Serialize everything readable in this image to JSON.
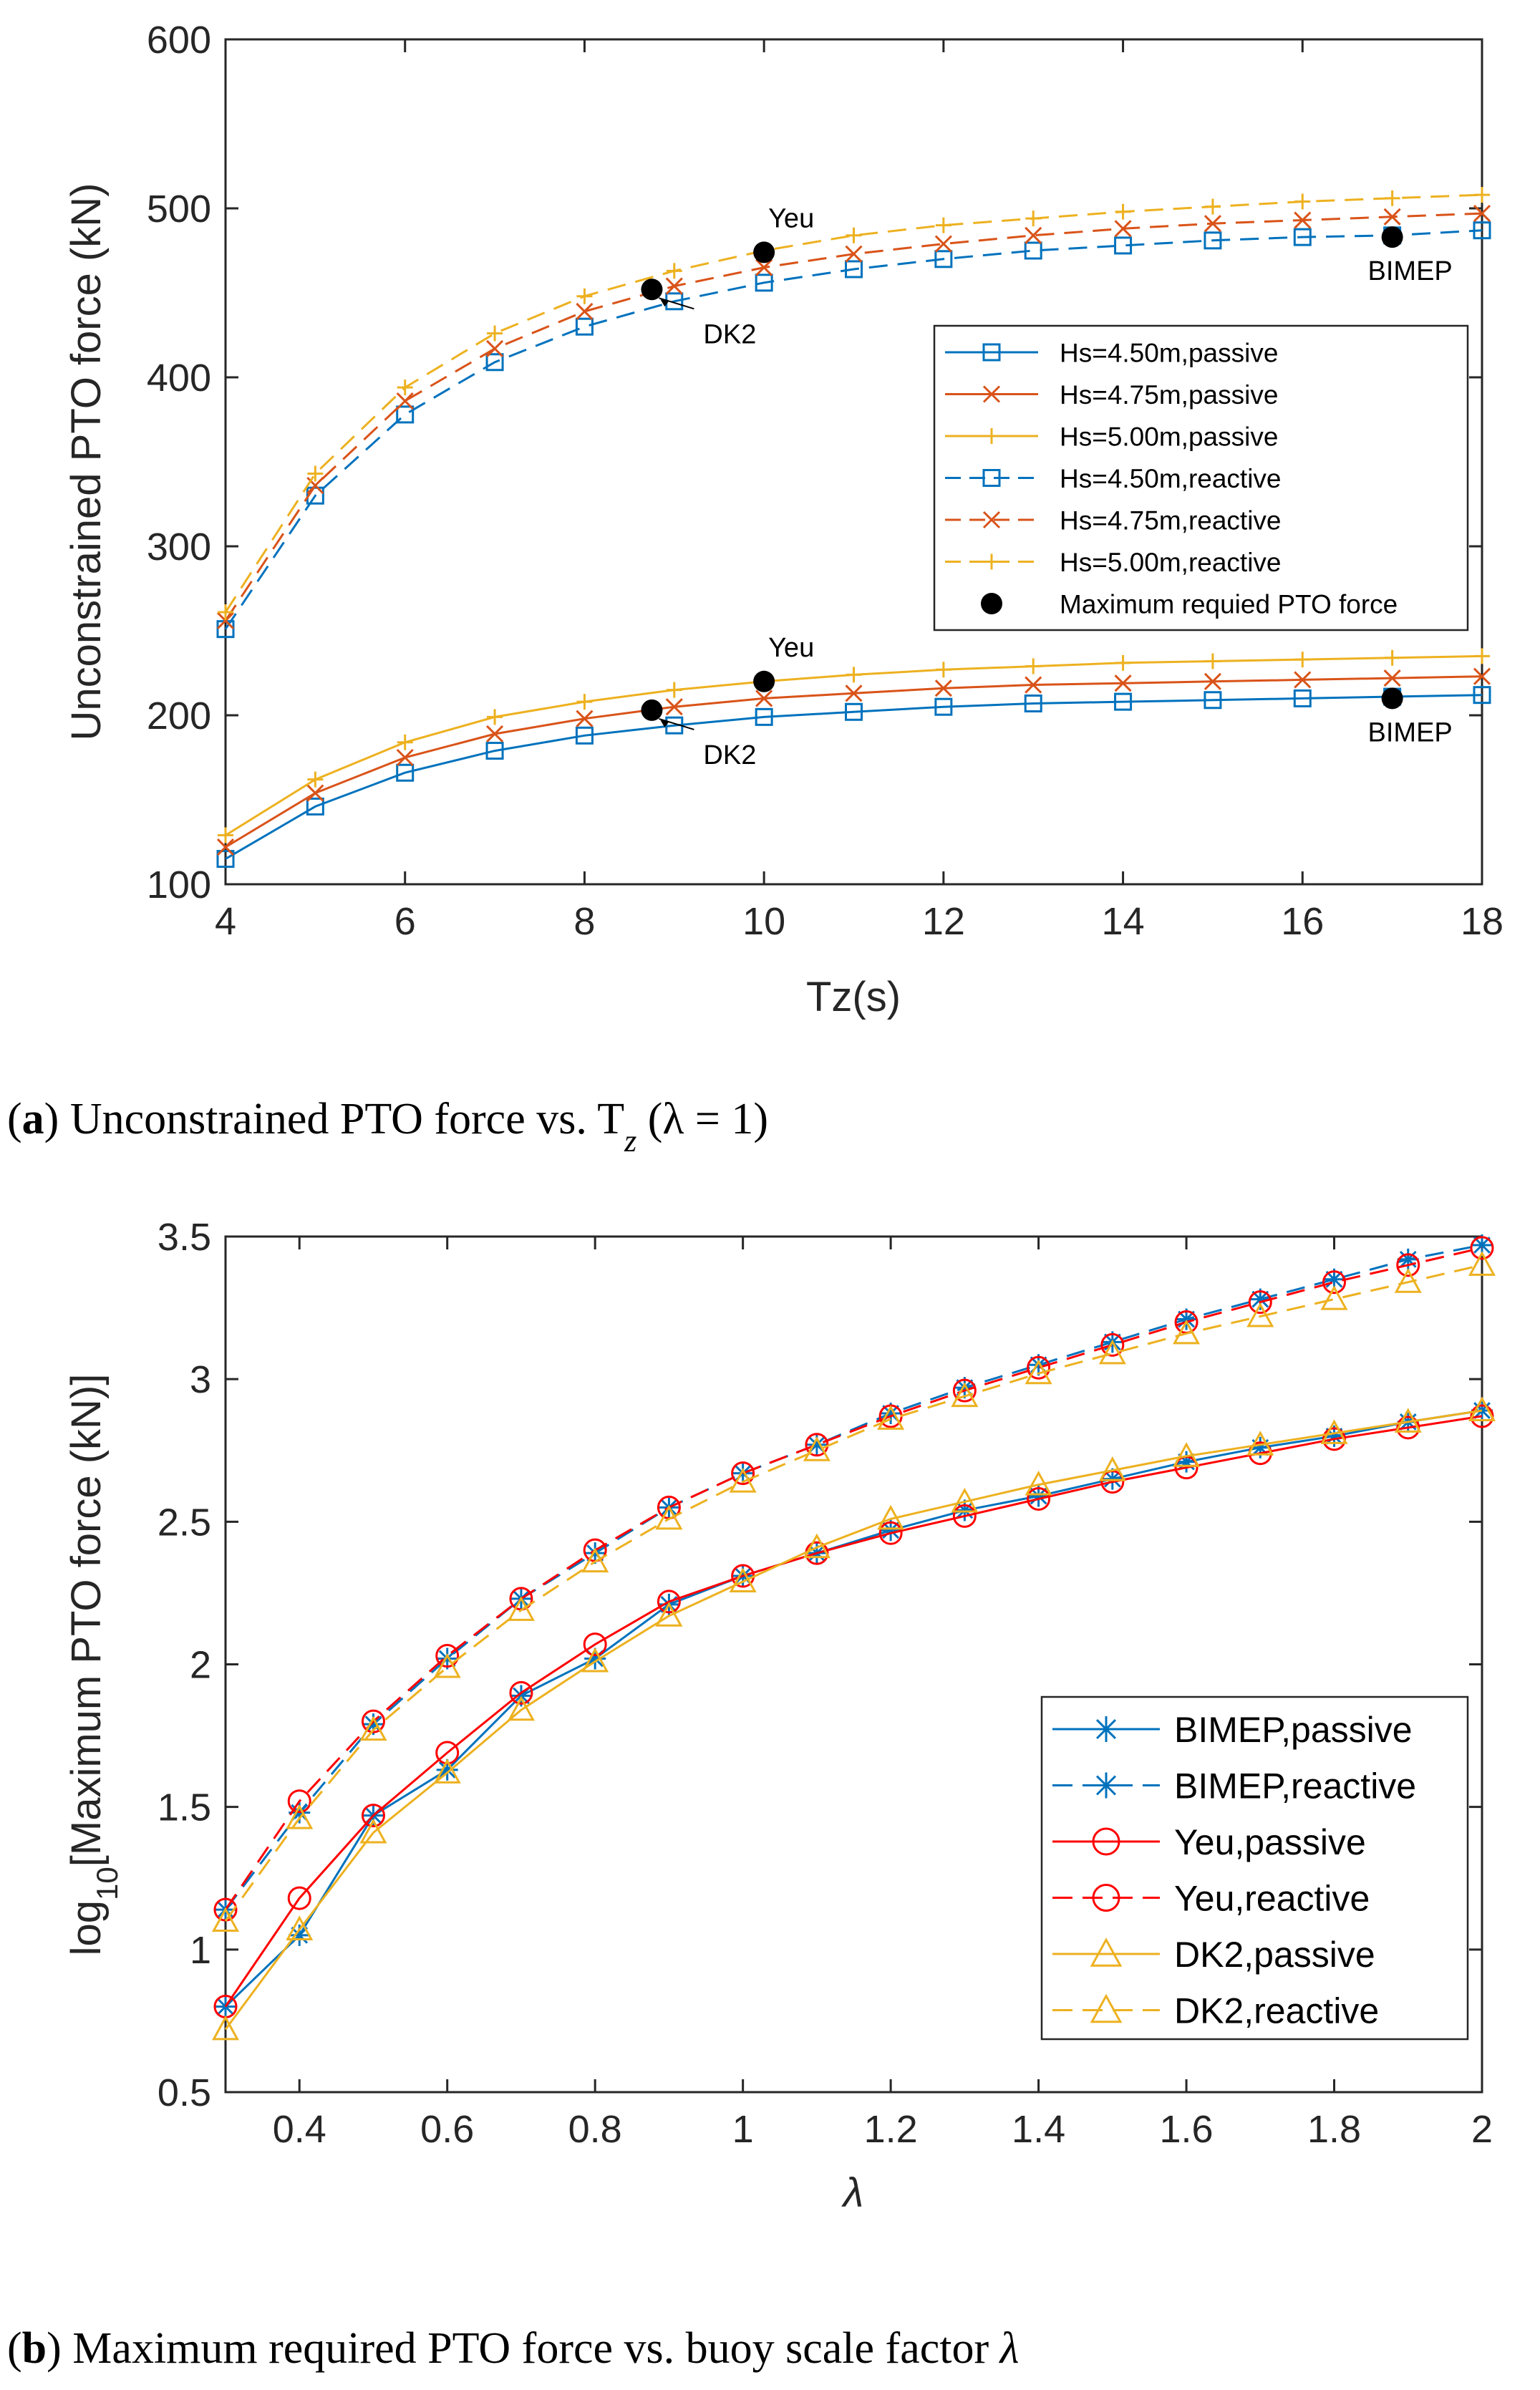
{
  "chart_data": [
    {
      "type": "line",
      "xlabel": "Tz(s)",
      "ylabel": "Unconstrained PTO force (kN)",
      "xlim": [
        4,
        18
      ],
      "ylim": [
        100,
        600
      ],
      "xticks": [
        4,
        6,
        8,
        10,
        12,
        14,
        16,
        18
      ],
      "yticks": [
        100,
        200,
        300,
        400,
        500,
        600
      ],
      "xtick_labels": [
        "4",
        "6",
        "8",
        "10",
        "12",
        "14",
        "16",
        "18"
      ],
      "ytick_labels": [
        "100",
        "200",
        "300",
        "400",
        "500",
        "600"
      ],
      "grid": false,
      "legend_position": "right",
      "x": [
        4,
        5,
        6,
        7,
        8,
        9,
        10,
        11,
        12,
        13,
        14,
        15,
        16,
        17,
        18
      ],
      "series": [
        {
          "name": "Hs=4.50m,passive",
          "color": "#0072BD",
          "dash": false,
          "marker": "square",
          "values": [
            115,
            146,
            166,
            179,
            188,
            194,
            199,
            202,
            205,
            207,
            208,
            209,
            210,
            211,
            212
          ]
        },
        {
          "name": "Hs=4.75m,passive",
          "color": "#D95319",
          "dash": false,
          "marker": "x",
          "values": [
            122,
            154,
            175,
            189,
            198,
            205,
            210,
            213,
            216,
            218,
            219,
            220,
            221,
            222,
            223
          ]
        },
        {
          "name": "Hs=5.00m,passive",
          "color": "#EDB120",
          "dash": false,
          "marker": "plus",
          "values": [
            129,
            162,
            184,
            199,
            208,
            215,
            220,
            224,
            227,
            229,
            231,
            232,
            233,
            234,
            235
          ]
        },
        {
          "name": "Hs=4.50m,reactive",
          "color": "#0072BD",
          "dash": true,
          "marker": "square",
          "values": [
            251,
            330,
            378,
            409,
            430,
            445,
            456,
            464,
            470,
            475,
            478,
            481,
            483,
            484,
            487
          ]
        },
        {
          "name": "Hs=4.75m,reactive",
          "color": "#D95319",
          "dash": true,
          "marker": "x",
          "values": [
            256,
            336,
            386,
            417,
            439,
            454,
            465,
            473,
            479,
            484,
            488,
            491,
            493,
            495,
            497
          ]
        },
        {
          "name": "Hs=5.00m,reactive",
          "color": "#EDB120",
          "dash": true,
          "marker": "plus",
          "values": [
            261,
            343,
            394,
            426,
            448,
            463,
            475,
            484,
            490,
            494,
            498,
            501,
            504,
            506,
            508
          ]
        }
      ],
      "max_points_label": "Maximum requied PTO force",
      "max_points": [
        {
          "x": 8.75,
          "y": 452,
          "label": "DK2",
          "label_dx": 0.55,
          "label_dy": -30
        },
        {
          "x": 10,
          "y": 474,
          "label": "Yeu",
          "label_dx": 0.3,
          "label_dy": 30
        },
        {
          "x": 17,
          "y": 483,
          "label": "BIMEP",
          "label_dx": 0,
          "label_dy": -25
        },
        {
          "x": 8.75,
          "y": 203,
          "label": "DK2",
          "label_dx": 0.55,
          "label_dy": -30
        },
        {
          "x": 10,
          "y": 220,
          "label": "Yeu",
          "label_dx": 0.3,
          "label_dy": 30
        },
        {
          "x": 17,
          "y": 210,
          "label": "BIMEP",
          "label_dx": 0,
          "label_dy": -25
        }
      ],
      "caption_letter": "a",
      "caption_text": "Unconstrained PTO force vs. T",
      "caption_sub": "z",
      "caption_tail": " (λ = 1)"
    },
    {
      "type": "line",
      "xlabel": "λ",
      "ylabel_prefix": "log",
      "ylabel_sub": "10",
      "ylabel_rest": "[Maximum PTO force (kN)]",
      "xlim": [
        0.3,
        2
      ],
      "ylim": [
        0.5,
        3.5
      ],
      "xticks": [
        0.4,
        0.6,
        0.8,
        1.0,
        1.2,
        1.4,
        1.6,
        1.8,
        2.0
      ],
      "yticks": [
        0.5,
        1.0,
        1.5,
        2.0,
        2.5,
        3.0,
        3.5
      ],
      "xtick_labels": [
        "0.4",
        "0.6",
        "0.8",
        "1",
        "1.2",
        "1.4",
        "1.6",
        "1.8",
        "2"
      ],
      "ytick_labels": [
        "0.5",
        "1",
        "1.5",
        "2",
        "2.5",
        "3",
        "3.5"
      ],
      "grid": false,
      "legend_position": "bottom-right",
      "x": [
        0.3,
        0.4,
        0.5,
        0.6,
        0.7,
        0.8,
        0.9,
        1.0,
        1.1,
        1.2,
        1.3,
        1.4,
        1.5,
        1.6,
        1.7,
        1.8,
        1.9,
        2.0
      ],
      "series": [
        {
          "name": "BIMEP,passive",
          "color": "#0072BD",
          "dash": false,
          "marker": "asterisk",
          "values": [
            0.8,
            1.05,
            1.47,
            1.63,
            1.89,
            2.02,
            2.21,
            2.31,
            2.39,
            2.47,
            2.54,
            2.59,
            2.65,
            2.71,
            2.76,
            2.8,
            2.85,
            2.89
          ]
        },
        {
          "name": "BIMEP,reactive",
          "color": "#0072BD",
          "dash": true,
          "marker": "asterisk",
          "values": [
            1.14,
            1.48,
            1.79,
            2.02,
            2.23,
            2.39,
            2.55,
            2.67,
            2.77,
            2.88,
            2.97,
            3.05,
            3.13,
            3.21,
            3.28,
            3.35,
            3.42,
            3.47
          ]
        },
        {
          "name": "Yeu,passive",
          "color": "#FF0000",
          "dash": false,
          "marker": "circle",
          "values": [
            0.8,
            1.18,
            1.47,
            1.69,
            1.9,
            2.07,
            2.22,
            2.31,
            2.39,
            2.46,
            2.52,
            2.58,
            2.64,
            2.69,
            2.74,
            2.79,
            2.83,
            2.87
          ]
        },
        {
          "name": "Yeu,reactive",
          "color": "#FF0000",
          "dash": true,
          "marker": "circle",
          "values": [
            1.14,
            1.52,
            1.8,
            2.03,
            2.23,
            2.4,
            2.55,
            2.67,
            2.77,
            2.87,
            2.96,
            3.04,
            3.12,
            3.2,
            3.27,
            3.34,
            3.4,
            3.46
          ]
        },
        {
          "name": "DK2,passive",
          "color": "#EDB120",
          "dash": false,
          "marker": "triangle",
          "values": [
            0.72,
            1.07,
            1.41,
            1.62,
            1.84,
            2.01,
            2.17,
            2.29,
            2.41,
            2.51,
            2.57,
            2.63,
            2.68,
            2.73,
            2.77,
            2.81,
            2.85,
            2.89
          ]
        },
        {
          "name": "DK2,reactive",
          "color": "#EDB120",
          "dash": true,
          "marker": "triangle",
          "values": [
            1.1,
            1.46,
            1.77,
            1.99,
            2.19,
            2.36,
            2.51,
            2.64,
            2.75,
            2.86,
            2.94,
            3.02,
            3.09,
            3.16,
            3.22,
            3.28,
            3.34,
            3.4
          ]
        }
      ],
      "caption_letter": "b",
      "caption_text": "Maximum required PTO force vs. buoy scale factor ",
      "caption_tail": "λ"
    }
  ]
}
